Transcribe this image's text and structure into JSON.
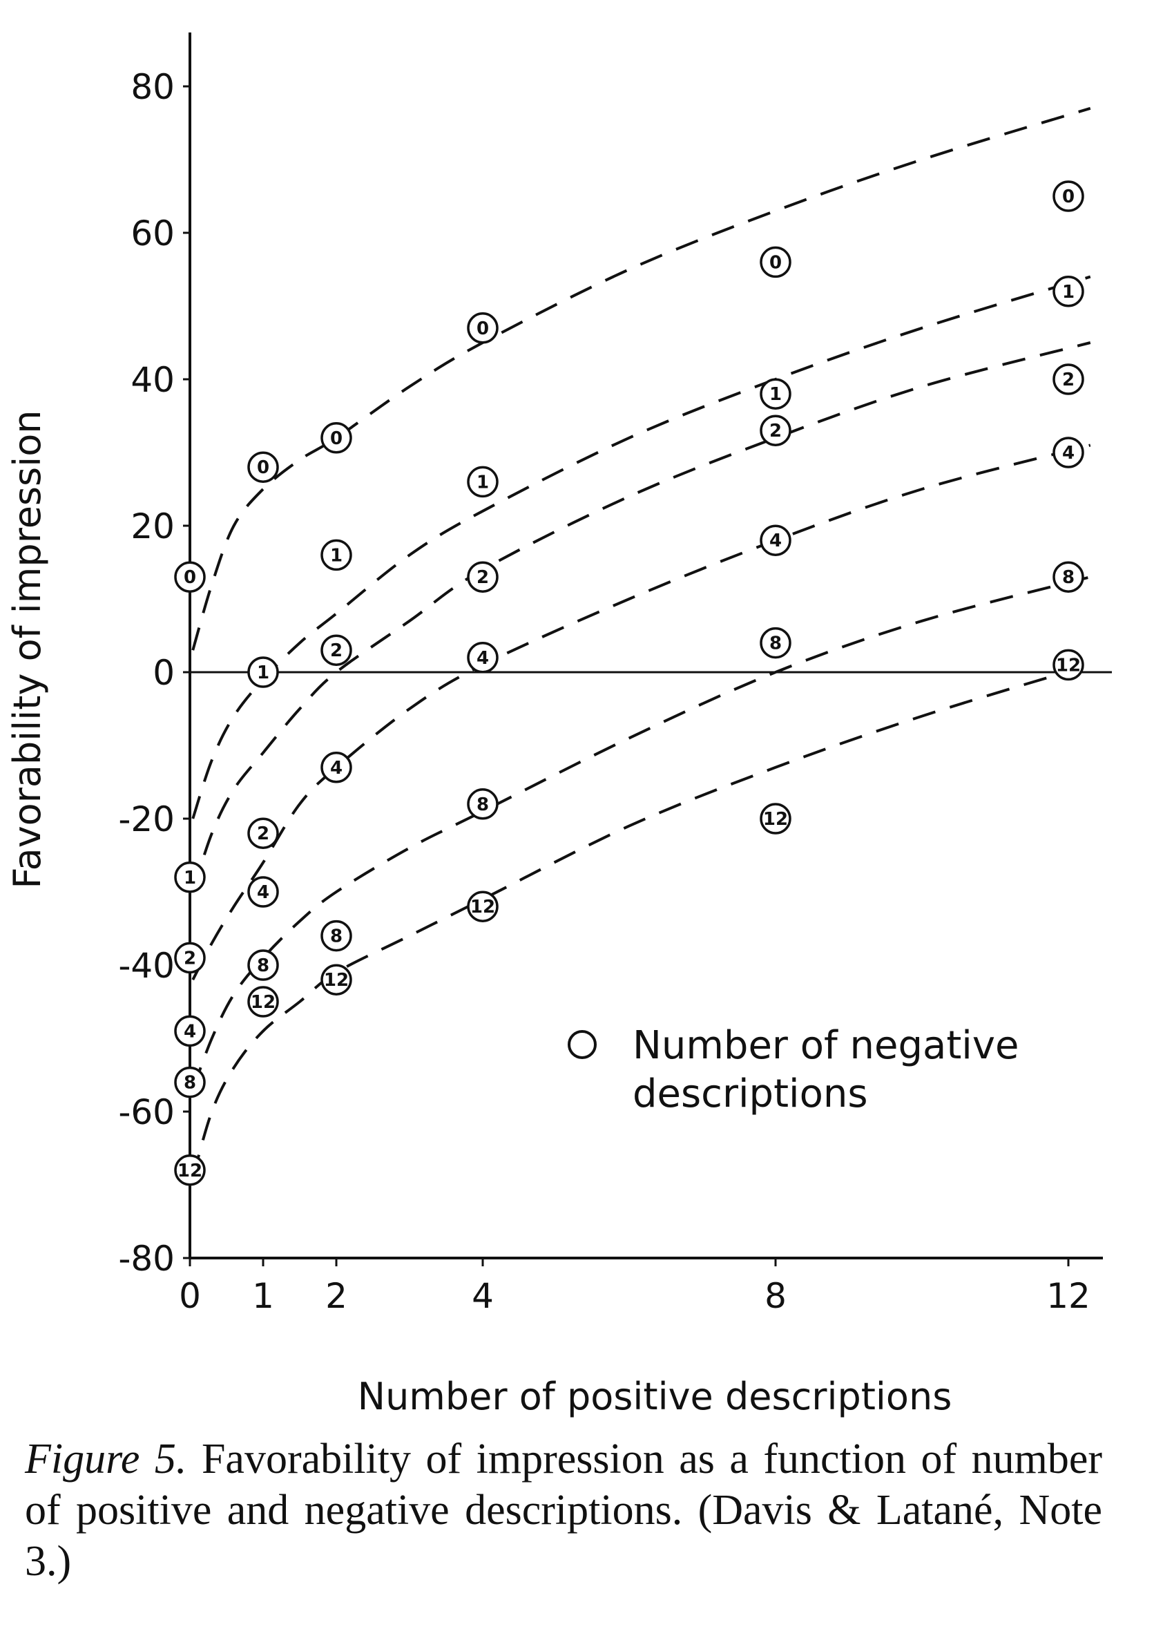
{
  "chart_data": {
    "type": "scatter",
    "title": "",
    "xlabel": "Number of positive descriptions",
    "ylabel": "Favorability of impression",
    "xlim": [
      0,
      12.5
    ],
    "ylim": [
      -80,
      85
    ],
    "x_ticks": [
      0,
      1,
      2,
      4,
      8,
      12
    ],
    "x_tick_labels": [
      "0",
      "1",
      "2",
      "4",
      "8",
      "12"
    ],
    "y_ticks": [
      80,
      60,
      40,
      20,
      0,
      -20,
      -40,
      -60,
      -80
    ],
    "y_tick_labels": [
      "80",
      "60",
      "40",
      "20",
      "0",
      "-20",
      "-40",
      "-60",
      "-80"
    ],
    "legend": {
      "symbol": "O-",
      "text_line1": "Number of negative",
      "text_line2": "descriptions",
      "placement": "lower-right"
    },
    "series": [
      {
        "name": "0",
        "label": "0",
        "points": [
          [
            0,
            13
          ],
          [
            1,
            28
          ],
          [
            2,
            32
          ],
          [
            4,
            47
          ],
          [
            8,
            56
          ],
          [
            12,
            65
          ]
        ],
        "curve": [
          [
            0.04,
            3
          ],
          [
            0.3,
            12
          ],
          [
            0.6,
            20
          ],
          [
            1,
            25
          ],
          [
            1.5,
            29
          ],
          [
            2,
            32
          ],
          [
            3,
            39
          ],
          [
            4,
            45
          ],
          [
            6,
            55
          ],
          [
            8,
            63
          ],
          [
            10,
            70
          ],
          [
            12.3,
            77
          ]
        ]
      },
      {
        "name": "1",
        "label": "1",
        "points": [
          [
            0,
            -28
          ],
          [
            1,
            0
          ],
          [
            2,
            16
          ],
          [
            4,
            26
          ],
          [
            8,
            38
          ],
          [
            12,
            52
          ]
        ],
        "curve": [
          [
            0.04,
            -20
          ],
          [
            0.3,
            -12
          ],
          [
            0.6,
            -6
          ],
          [
            1,
            -1
          ],
          [
            1.5,
            4
          ],
          [
            2,
            8
          ],
          [
            3,
            16
          ],
          [
            4,
            22
          ],
          [
            6,
            32
          ],
          [
            8,
            40
          ],
          [
            10,
            47
          ],
          [
            12.3,
            54
          ]
        ]
      },
      {
        "name": "2",
        "label": "2",
        "points": [
          [
            0,
            -39
          ],
          [
            1,
            -22
          ],
          [
            2,
            3
          ],
          [
            4,
            13
          ],
          [
            8,
            33
          ],
          [
            12,
            40
          ]
        ],
        "curve": [
          [
            0.04,
            -30
          ],
          [
            0.3,
            -22
          ],
          [
            0.6,
            -16
          ],
          [
            1,
            -11
          ],
          [
            1.5,
            -5
          ],
          [
            2,
            0
          ],
          [
            3,
            7
          ],
          [
            4,
            14
          ],
          [
            6,
            24
          ],
          [
            8,
            32
          ],
          [
            10,
            39
          ],
          [
            12.3,
            45
          ]
        ]
      },
      {
        "name": "4",
        "label": "4",
        "points": [
          [
            0,
            -49
          ],
          [
            1,
            -30
          ],
          [
            2,
            -13
          ],
          [
            4,
            2
          ],
          [
            8,
            18
          ],
          [
            12,
            30
          ]
        ],
        "curve": [
          [
            0.04,
            -42
          ],
          [
            0.3,
            -37
          ],
          [
            0.6,
            -32
          ],
          [
            1,
            -26
          ],
          [
            1.5,
            -18
          ],
          [
            2,
            -13
          ],
          [
            3,
            -5
          ],
          [
            4,
            1
          ],
          [
            6,
            10
          ],
          [
            8,
            18
          ],
          [
            10,
            25
          ],
          [
            12.3,
            31
          ]
        ]
      },
      {
        "name": "8",
        "label": "8",
        "points": [
          [
            0,
            -56
          ],
          [
            1,
            -40
          ],
          [
            2,
            -36
          ],
          [
            4,
            -18
          ],
          [
            8,
            4
          ],
          [
            12,
            13
          ]
        ],
        "curve": [
          [
            0.04,
            -57
          ],
          [
            0.3,
            -50
          ],
          [
            0.6,
            -44
          ],
          [
            1,
            -39
          ],
          [
            1.5,
            -34
          ],
          [
            2,
            -30
          ],
          [
            3,
            -24
          ],
          [
            4,
            -19
          ],
          [
            6,
            -9
          ],
          [
            8,
            0
          ],
          [
            10,
            7
          ],
          [
            12.3,
            13
          ]
        ]
      },
      {
        "name": "12",
        "label": "12",
        "points": [
          [
            0,
            -68
          ],
          [
            1,
            -45
          ],
          [
            2,
            -42
          ],
          [
            4,
            -32
          ],
          [
            8,
            -20
          ],
          [
            12,
            1
          ]
        ],
        "curve": [
          [
            0.04,
            -69
          ],
          [
            0.3,
            -60
          ],
          [
            0.6,
            -54
          ],
          [
            1,
            -49
          ],
          [
            1.5,
            -45
          ],
          [
            2,
            -41
          ],
          [
            3,
            -36
          ],
          [
            4,
            -31
          ],
          [
            6,
            -21
          ],
          [
            8,
            -13
          ],
          [
            10,
            -6
          ],
          [
            12.3,
            1
          ]
        ]
      }
    ]
  },
  "caption": {
    "figure_label": "Figure 5.",
    "text": "Favorability of impression as a function of number of positive and negative descriptions. (Davis & Latané, Note 3.)"
  }
}
